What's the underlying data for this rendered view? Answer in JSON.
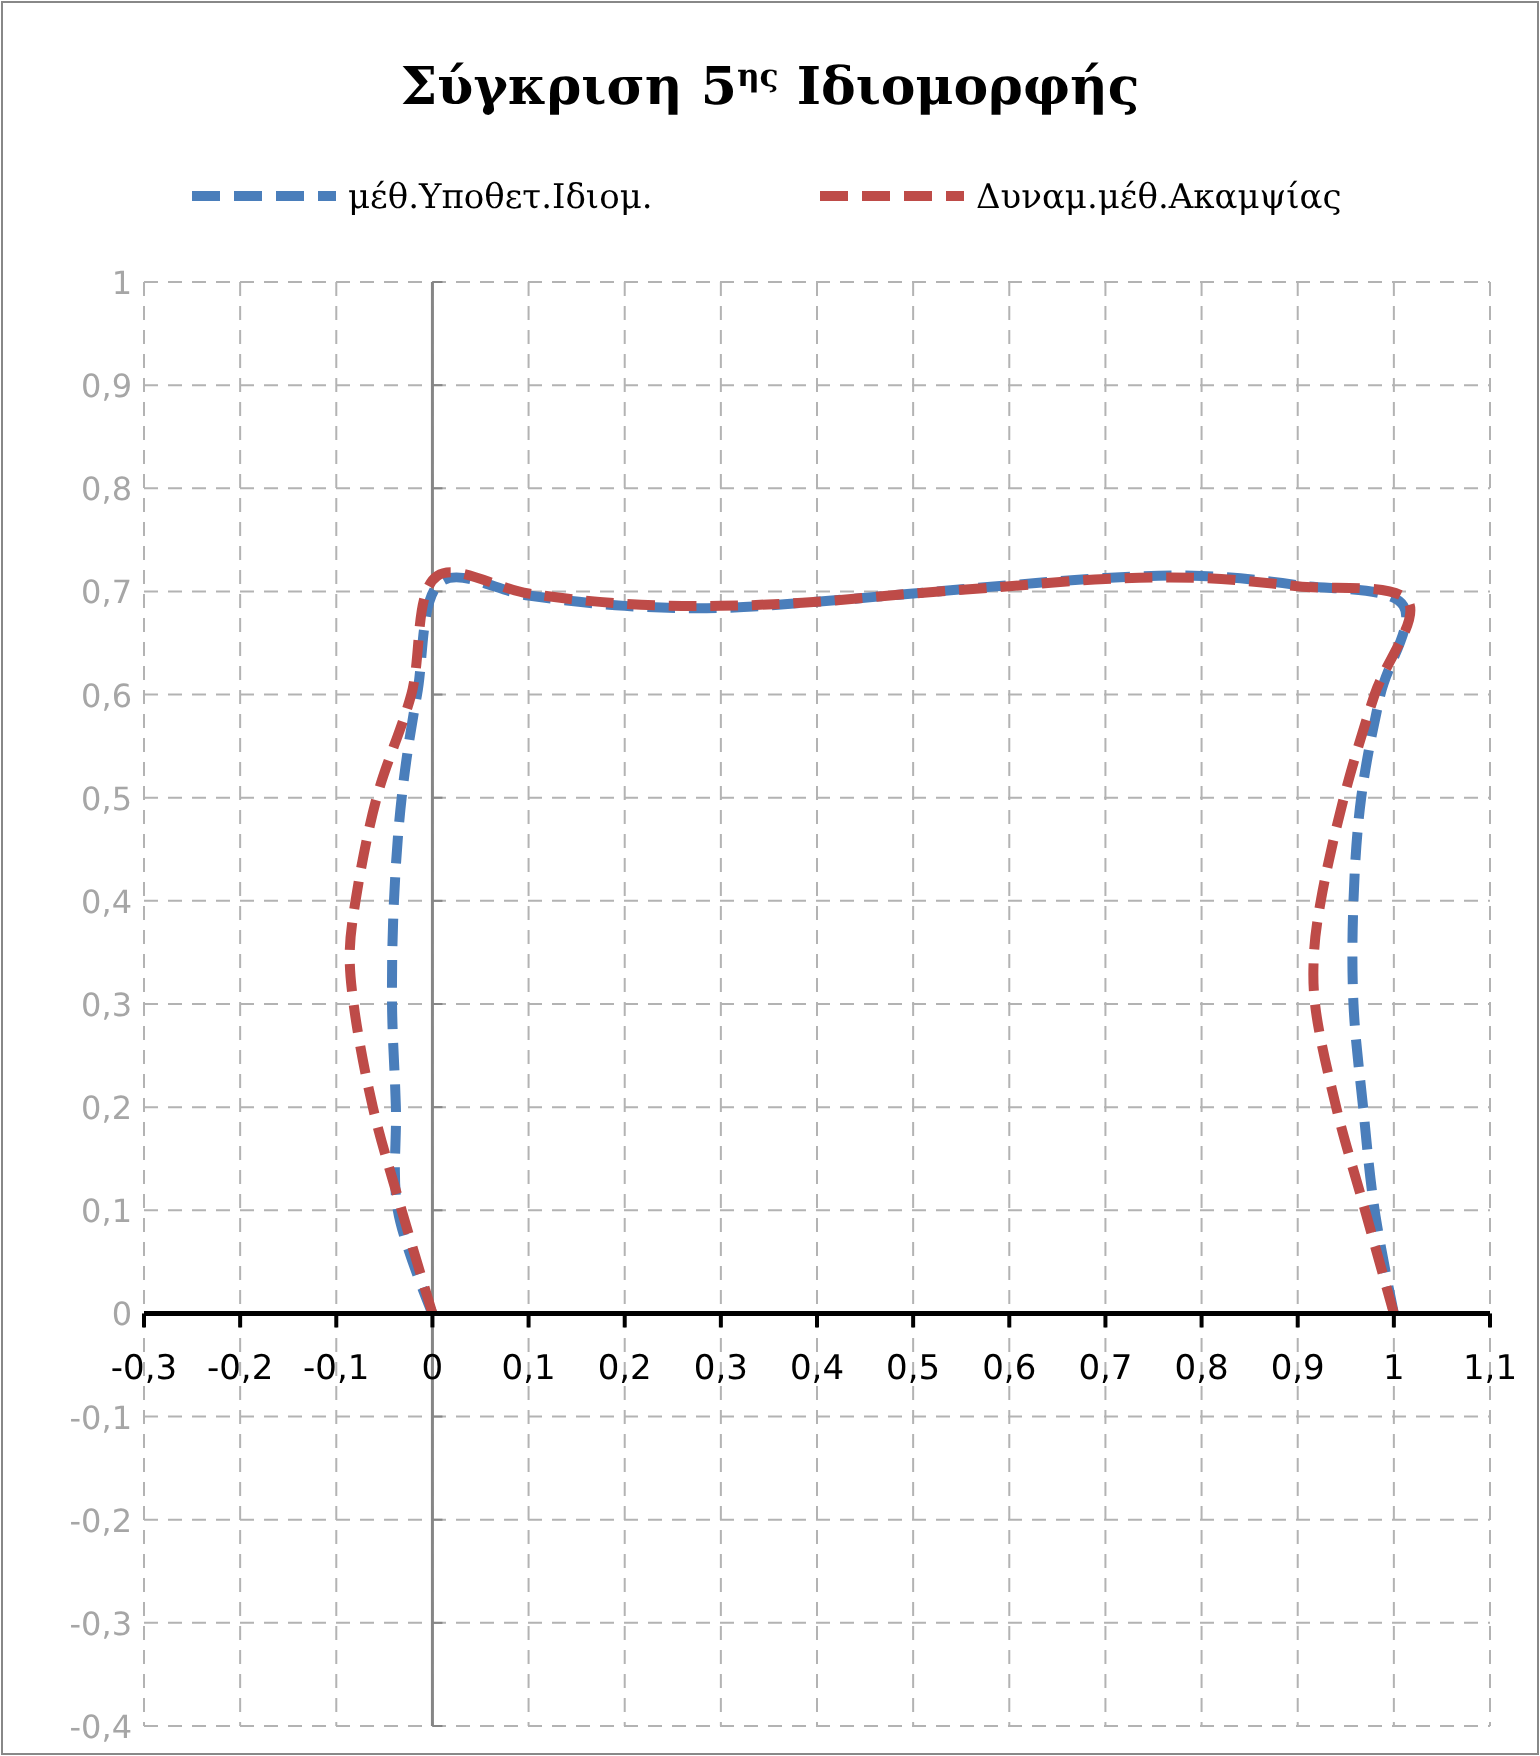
{
  "chart_data": {
    "type": "line",
    "title": "Σύγκριση 5$^{ης}$ Ιδιομορφής",
    "legend": "top",
    "grid": true,
    "line_style": "dashed",
    "marker": "none",
    "xlim": [
      -0.3,
      1.1
    ],
    "ylim": [
      -0.4,
      1
    ],
    "xticks": [
      {
        "value": -0.3,
        "label": "-0,3"
      },
      {
        "value": -0.2,
        "label": "-0,2"
      },
      {
        "value": -0.1,
        "label": "-0,1"
      },
      0,
      {
        "value": 0.1,
        "label": "0,1"
      },
      {
        "value": 0.2,
        "label": "0,2"
      },
      {
        "value": 0.3,
        "label": "0,3"
      },
      {
        "value": 0.4,
        "label": "0,4"
      },
      {
        "value": 0.5,
        "label": "0,5"
      },
      {
        "value": 0.6,
        "label": "0,6"
      },
      {
        "value": 0.7,
        "label": "0,7"
      },
      {
        "value": 0.8,
        "label": "0,8"
      },
      {
        "value": 0.9,
        "label": "0,9"
      },
      1,
      {
        "value": 1.1,
        "label": "1,1"
      }
    ],
    "yticks": [
      {
        "value": -0.4,
        "label": "-0,4"
      },
      {
        "value": -0.3,
        "label": "-0,3"
      },
      {
        "value": -0.2,
        "label": "-0,2"
      },
      {
        "value": -0.1,
        "label": "-0,1"
      },
      0,
      {
        "value": 0.1,
        "label": "0,1"
      },
      {
        "value": 0.2,
        "label": "0,2"
      },
      {
        "value": 0.3,
        "label": "0,3"
      },
      {
        "value": 0.4,
        "label": "0,4"
      },
      {
        "value": 0.5,
        "label": "0,5"
      },
      {
        "value": 0.6,
        "label": "0,6"
      },
      {
        "value": 0.7,
        "label": "0,7"
      },
      {
        "value": 0.8,
        "label": "0,8"
      },
      {
        "value": 0.9,
        "label": "0,9"
      },
      1
    ],
    "series": [
      {
        "name": "μέθ.Υποθετ.Ιδιομ.",
        "color": "#4a7ebb",
        "x": [
          0,
          -0.036,
          -0.038,
          -0.042,
          -0.04,
          -0.032,
          -0.016,
          0.01,
          0.1,
          0.2,
          0.3,
          0.4,
          0.5,
          0.6,
          0.7,
          0.8,
          0.9,
          1.01,
          0.986,
          0.966,
          0.958,
          0.958,
          0.968,
          0.98,
          1
        ],
        "values": [
          0,
          0.1,
          0.2,
          0.3,
          0.4,
          0.5,
          0.6,
          0.71,
          0.696,
          0.686,
          0.684,
          0.69,
          0.698,
          0.706,
          0.713,
          0.715,
          0.706,
          0.686,
          0.6,
          0.5,
          0.4,
          0.3,
          0.2,
          0.1,
          0
        ]
      },
      {
        "name": "Δυναμ.μέθ.Ακαμψίας",
        "color": "#be4b48",
        "x": [
          0,
          -0.032,
          -0.062,
          -0.082,
          -0.086,
          -0.08,
          -0.058,
          -0.022,
          0.005,
          0.1,
          0.2,
          0.3,
          0.4,
          0.5,
          0.6,
          0.7,
          0.8,
          0.9,
          1.015,
          0.98,
          0.948,
          0.924,
          0.917,
          0.918,
          0.94,
          0.97,
          1
        ],
        "values": [
          0,
          0.1,
          0.2,
          0.3,
          0.35,
          0.4,
          0.5,
          0.6,
          0.715,
          0.698,
          0.688,
          0.686,
          0.69,
          0.698,
          0.705,
          0.712,
          0.713,
          0.705,
          0.69,
          0.6,
          0.5,
          0.4,
          0.35,
          0.3,
          0.2,
          0.1,
          0
        ]
      }
    ]
  }
}
